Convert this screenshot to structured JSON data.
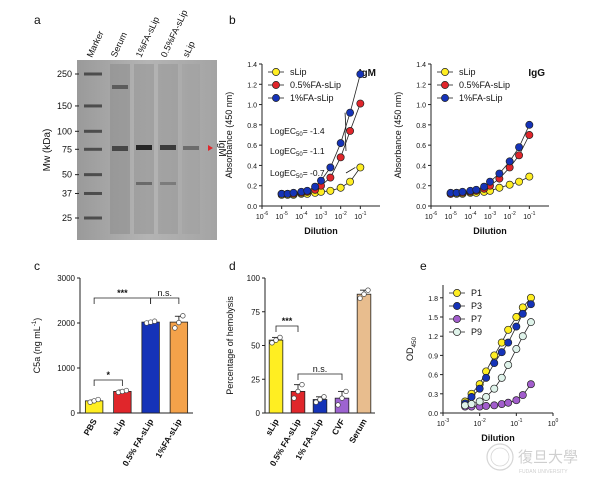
{
  "panels": {
    "a": "a",
    "b": "b",
    "c": "c",
    "d": "d",
    "e": "e"
  },
  "gel": {
    "lanes": [
      "Marker",
      "Serum",
      "1%FA-sLip",
      "0.5%FA-sLip",
      "sLip"
    ],
    "ylabel": "Mw (kDa)",
    "markers": [
      "250",
      "150",
      "100",
      "75",
      "50",
      "37",
      "25"
    ],
    "marker_values": [
      250,
      150,
      100,
      75,
      50,
      37,
      25
    ],
    "band_label": "IgM",
    "arrow_color": "#e0262b"
  },
  "watermark": {
    "text": "復旦大學",
    "subtext": "FUDAN UNIVERSITY"
  },
  "colors": {
    "yellow": "#ffee22",
    "red": "#e0262b",
    "blue": "#1533b8",
    "orange": "#f4a24a",
    "purple": "#a25dcc",
    "peach": "#e8bd8e",
    "mint": "#dff3ea",
    "cvf_purple": "#9d63d1"
  },
  "chart_data": [
    {
      "id": "b-igm",
      "type": "line",
      "title": "IgM",
      "xlabel": "Dilution",
      "ylabel": "Absorbance (450 nm)",
      "xscale": "log",
      "xlim": [
        1e-06,
        1
      ],
      "xticks": [
        "10-6",
        "10-5",
        "10-4",
        "10-3",
        "10-2",
        "10-1"
      ],
      "ylim": [
        0,
        1.4
      ],
      "yticks": [
        "0.0",
        "0.2",
        "0.4",
        "0.6",
        "0.8",
        "1.0",
        "1.2",
        "1.4"
      ],
      "legend_position": "top-left",
      "x": [
        1e-05,
        2e-05,
        4e-05,
        0.0001,
        0.0002,
        0.0005,
        0.001,
        0.003,
        0.01,
        0.03,
        0.1
      ],
      "series": [
        {
          "name": "sLip",
          "color": "#ffee22",
          "values": [
            0.11,
            0.11,
            0.11,
            0.12,
            0.12,
            0.13,
            0.14,
            0.15,
            0.18,
            0.24,
            0.38
          ]
        },
        {
          "name": "0.5%FA-sLip",
          "color": "#e0262b",
          "values": [
            0.12,
            0.12,
            0.12,
            0.13,
            0.14,
            0.16,
            0.2,
            0.28,
            0.48,
            0.74,
            1.01
          ]
        },
        {
          "name": "1%FA-sLip",
          "color": "#1533b8",
          "values": [
            0.12,
            0.12,
            0.13,
            0.14,
            0.15,
            0.19,
            0.25,
            0.38,
            0.62,
            0.92,
            1.3
          ]
        }
      ],
      "annotations": [
        {
          "base": "LogEC",
          "sub": "50",
          "value": "= -1.4"
        },
        {
          "base": "LogEC",
          "sub": "50",
          "value": "= -1.1"
        },
        {
          "base": "LogEC",
          "sub": "50",
          "value": "= -0.7"
        }
      ]
    },
    {
      "id": "b-igg",
      "type": "line",
      "title": "IgG",
      "xlabel": "Dilution",
      "ylabel": "Absorbance (450 nm)",
      "xscale": "log",
      "xlim": [
        1e-06,
        1
      ],
      "xticks": [
        "10-6",
        "10-5",
        "10-4",
        "10-3",
        "10-2",
        "10-1"
      ],
      "ylim": [
        0,
        1.4
      ],
      "yticks": [
        "0.0",
        "0.2",
        "0.4",
        "0.6",
        "0.8",
        "1.0",
        "1.2",
        "1.4"
      ],
      "legend_position": "top-left",
      "x": [
        1e-05,
        2e-05,
        4e-05,
        0.0001,
        0.0002,
        0.0005,
        0.001,
        0.003,
        0.01,
        0.03,
        0.1
      ],
      "series": [
        {
          "name": "sLip",
          "color": "#ffee22",
          "values": [
            0.12,
            0.12,
            0.12,
            0.13,
            0.13,
            0.14,
            0.15,
            0.18,
            0.21,
            0.24,
            0.29
          ]
        },
        {
          "name": "0.5%FA-sLip",
          "color": "#e0262b",
          "values": [
            0.12,
            0.13,
            0.13,
            0.14,
            0.15,
            0.17,
            0.2,
            0.27,
            0.38,
            0.5,
            0.7
          ]
        },
        {
          "name": "1%FA-sLip",
          "color": "#1533b8",
          "values": [
            0.13,
            0.13,
            0.14,
            0.15,
            0.16,
            0.19,
            0.24,
            0.32,
            0.44,
            0.58,
            0.8
          ]
        }
      ]
    },
    {
      "id": "c-c5a",
      "type": "bar",
      "ylabel": "C5a (ng mL-1)",
      "ylim": [
        0,
        3000
      ],
      "yticks": [
        "0",
        "1000",
        "2000",
        "3000"
      ],
      "categories": [
        "PBS",
        "sLip",
        "0.5% FA-sLip",
        "1%FA-sLip"
      ],
      "values": [
        270,
        480,
        2020,
        2020
      ],
      "errors": [
        20,
        30,
        20,
        130
      ],
      "points": [
        [
          240,
          270,
          300
        ],
        [
          460,
          480,
          500
        ],
        [
          2000,
          2020,
          2040
        ],
        [
          1890,
          2010,
          2160
        ]
      ],
      "colors": [
        "#ffee22",
        "#e0262b",
        "#1533b8",
        "#f4a24a"
      ],
      "significance": [
        {
          "from": 0,
          "to": 1,
          "label": "*"
        },
        {
          "from": 0,
          "to": 2,
          "label": "***"
        },
        {
          "from": 2,
          "to": 3,
          "label": "n.s."
        }
      ]
    },
    {
      "id": "d-hemolysis",
      "type": "bar",
      "ylabel": "Percentage of hemolysis",
      "ylim": [
        0,
        100
      ],
      "yticks": [
        "0",
        "25",
        "50",
        "75",
        "100"
      ],
      "categories": [
        "sLip",
        "0.5% FA-sLip",
        "1% FA-sLip",
        "CVF",
        "Serum"
      ],
      "values": [
        54,
        16,
        10,
        11,
        88
      ],
      "errors": [
        2,
        5,
        2,
        5,
        3
      ],
      "points": [
        [
          52,
          54,
          56
        ],
        [
          11,
          16,
          21
        ],
        [
          8,
          10,
          12
        ],
        [
          6,
          11,
          16
        ],
        [
          85,
          88,
          91
        ]
      ],
      "colors": [
        "#ffee22",
        "#e0262b",
        "#1533b8",
        "#9d63d1",
        "#e8bd8e"
      ],
      "significance": [
        {
          "from": 0,
          "to": 1,
          "label": "***"
        },
        {
          "from": 1,
          "to": 3,
          "label": "n.s."
        }
      ]
    },
    {
      "id": "e-od",
      "type": "line",
      "xlabel": "Dilution",
      "ylabel": "OD450",
      "xscale": "log",
      "xlim": [
        0.001,
        1
      ],
      "xticks": [
        "10-3",
        "10-2",
        "10-1",
        "100"
      ],
      "ylim": [
        0,
        2.0
      ],
      "yticks": [
        "0.0",
        "0.3",
        "0.6",
        "0.9",
        "1.2",
        "1.5",
        "1.8"
      ],
      "legend_position": "top-left",
      "x": [
        0.004,
        0.006,
        0.01,
        0.015,
        0.025,
        0.04,
        0.06,
        0.1,
        0.15,
        0.25
      ],
      "series": [
        {
          "name": "P1",
          "color": "#ffee22",
          "values": [
            0.18,
            0.3,
            0.45,
            0.65,
            0.9,
            1.1,
            1.3,
            1.5,
            1.65,
            1.8
          ]
        },
        {
          "name": "P3",
          "color": "#1533b8",
          "values": [
            0.15,
            0.25,
            0.38,
            0.55,
            0.78,
            0.95,
            1.1,
            1.35,
            1.55,
            1.7
          ]
        },
        {
          "name": "P7",
          "color": "#a25dcc",
          "values": [
            0.1,
            0.1,
            0.1,
            0.11,
            0.12,
            0.14,
            0.16,
            0.2,
            0.28,
            0.45
          ]
        },
        {
          "name": "P9",
          "color": "#dff3ea",
          "values": [
            0.12,
            0.14,
            0.18,
            0.25,
            0.38,
            0.55,
            0.75,
            1.0,
            1.2,
            1.42
          ]
        }
      ]
    }
  ]
}
